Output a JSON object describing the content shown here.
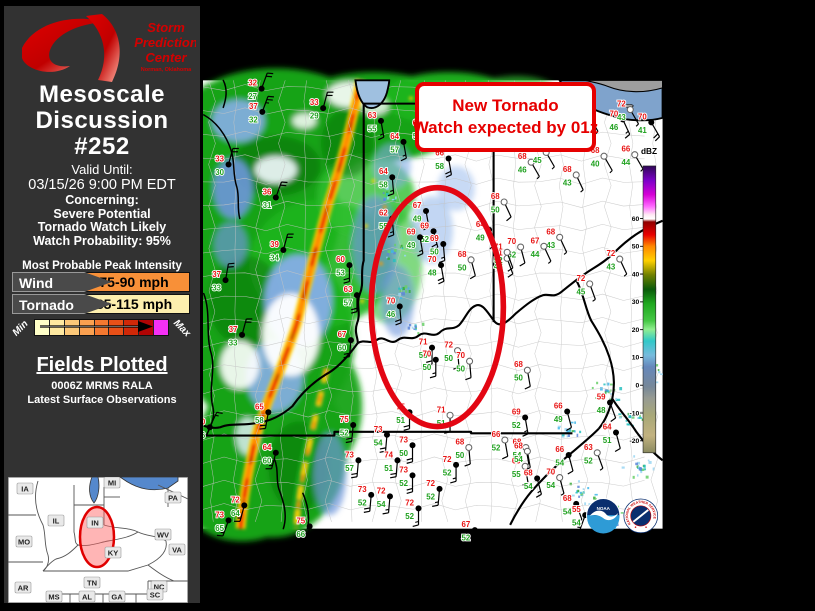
{
  "sidebar": {
    "logo": {
      "org_lines": [
        "Storm",
        "Prediction",
        "Center"
      ],
      "location": "Norman, Oklahoma"
    },
    "title_lines": [
      "Mesoscale",
      "Discussion",
      "#252"
    ],
    "valid_label": "Valid Until:",
    "valid_time": "03/15/26 9:00 PM EDT",
    "concerning_label": "Concerning:",
    "concerning_lines": [
      "Severe Potential",
      "Tornado Watch Likely",
      "Watch Probability: 95%"
    ],
    "intensity": {
      "header": "Most Probable Peak Intensity",
      "rows": [
        {
          "label": "Wind",
          "value": "75-90 mph",
          "color": "#F89038"
        },
        {
          "label": "Tornado",
          "value": "85-115 mph",
          "color": "#FDEFAE"
        }
      ],
      "scale": {
        "min_label": "Min",
        "max_label": "Max",
        "colors": [
          "#FFFFC8",
          "#FEE8A0",
          "#FCC878",
          "#FAA050",
          "#F47830",
          "#E85018",
          "#D02808",
          "#B00404",
          "#F530F5"
        ],
        "arrow_tip_fraction": 0.85
      }
    },
    "fields": {
      "header": "Fields Plotted",
      "lines": [
        "0006Z MRMS RALA",
        "Latest Surface Observations"
      ]
    }
  },
  "map": {
    "annotation": {
      "line1": "New Tornado",
      "line2": "Watch expected by 01z",
      "color": "#E60000"
    },
    "colorbar": {
      "label": "dBZ",
      "ticks": [
        60,
        50,
        40,
        30,
        20,
        10,
        0,
        -10,
        -20
      ]
    },
    "temp_color": "#E81414",
    "dew_color": "#1FA11F",
    "ellipse_color": "#E30613",
    "stations": [
      [
        281,
        17,
        32,
        27,
        0,
        20,
        20
      ],
      [
        363,
        43,
        33,
        29,
        0,
        15,
        20
      ],
      [
        282,
        48,
        37,
        32,
        0,
        20,
        25
      ],
      [
        237,
        118,
        33,
        30,
        0,
        15,
        20
      ],
      [
        300,
        162,
        36,
        31,
        0,
        20,
        20
      ],
      [
        310,
        232,
        39,
        34,
        0,
        15,
        20
      ],
      [
        233,
        272,
        37,
        33,
        0,
        10,
        20
      ],
      [
        255,
        345,
        37,
        33,
        0,
        15,
        20
      ],
      [
        212,
        468,
        50,
        46,
        0,
        25,
        15
      ],
      [
        237,
        592,
        73,
        65,
        0,
        200,
        15
      ],
      [
        258,
        572,
        72,
        64,
        0,
        195,
        15
      ],
      [
        290,
        448,
        65,
        58,
        0,
        190,
        20
      ],
      [
        300,
        502,
        64,
        60,
        0,
        195,
        15
      ],
      [
        345,
        600,
        75,
        66,
        0,
        190,
        20
      ],
      [
        398,
        252,
        60,
        53,
        0,
        180,
        20
      ],
      [
        408,
        292,
        63,
        57,
        0,
        180,
        20
      ],
      [
        400,
        352,
        67,
        60,
        0,
        185,
        20
      ],
      [
        440,
        60,
        63,
        55,
        0,
        170,
        15
      ],
      [
        470,
        88,
        64,
        57,
        0,
        170,
        15
      ],
      [
        500,
        70,
        66,
        57,
        0,
        165,
        20
      ],
      [
        530,
        110,
        66,
        58,
        0,
        170,
        20
      ],
      [
        455,
        135,
        64,
        58,
        0,
        175,
        15
      ],
      [
        455,
        190,
        62,
        55,
        0,
        175,
        15
      ],
      [
        525,
        22,
        65,
        50,
        0,
        160,
        15
      ],
      [
        578,
        42,
        68,
        48,
        0,
        160,
        15
      ],
      [
        632,
        48,
        68,
        46,
        0,
        160,
        15
      ],
      [
        672,
        48,
        69,
        48,
        1,
        155,
        10
      ],
      [
        718,
        55,
        70,
        46,
        1,
        150,
        10
      ],
      [
        762,
        58,
        70,
        46,
        0,
        155,
        15
      ],
      [
        800,
        62,
        70,
        41,
        0,
        150,
        20
      ],
      [
        500,
        180,
        67,
        49,
        0,
        170,
        20
      ],
      [
        510,
        207,
        69,
        52,
        0,
        165,
        20
      ],
      [
        492,
        215,
        69,
        49,
        0,
        170,
        15
      ],
      [
        523,
        224,
        69,
        50,
        0,
        175,
        15
      ],
      [
        520,
        252,
        70,
        48,
        0,
        170,
        20
      ],
      [
        560,
        245,
        68,
        50,
        1,
        165,
        12
      ],
      [
        604,
        168,
        68,
        50,
        1,
        155,
        10
      ],
      [
        608,
        243,
        71,
        48,
        1,
        160,
        10
      ],
      [
        626,
        228,
        70,
        52,
        1,
        165,
        10
      ],
      [
        584,
        205,
        64,
        49,
        0,
        160,
        15
      ],
      [
        545,
        62,
        66,
        57,
        0,
        165,
        15
      ],
      [
        640,
        115,
        68,
        46,
        1,
        150,
        8
      ],
      [
        660,
        102,
        69,
        45,
        1,
        150,
        8
      ],
      [
        700,
        132,
        68,
        43,
        1,
        155,
        8
      ],
      [
        737,
        107,
        68,
        40,
        1,
        150,
        8
      ],
      [
        778,
        105,
        66,
        44,
        1,
        150,
        8
      ],
      [
        772,
        45,
        72,
        43,
        1,
        150,
        8
      ],
      [
        678,
        215,
        68,
        43,
        1,
        155,
        8
      ],
      [
        608,
        235,
        71,
        52,
        1,
        160,
        10
      ],
      [
        657,
        227,
        67,
        44,
        1,
        155,
        8
      ],
      [
        718,
        277,
        72,
        45,
        1,
        160,
        8
      ],
      [
        758,
        244,
        72,
        43,
        1,
        155,
        8
      ],
      [
        465,
        307,
        70,
        46,
        0,
        175,
        20
      ],
      [
        508,
        362,
        71,
        53,
        0,
        180,
        20
      ],
      [
        542,
        366,
        72,
        50,
        1,
        175,
        10
      ],
      [
        513,
        378,
        70,
        50,
        0,
        180,
        15
      ],
      [
        558,
        380,
        70,
        50,
        1,
        175,
        10
      ],
      [
        635,
        392,
        68,
        50,
        1,
        170,
        10
      ],
      [
        478,
        448,
        75,
        51,
        0,
        180,
        20
      ],
      [
        532,
        452,
        71,
        51,
        1,
        180,
        10
      ],
      [
        403,
        465,
        75,
        52,
        0,
        185,
        20
      ],
      [
        410,
        512,
        73,
        57,
        0,
        185,
        20
      ],
      [
        448,
        478,
        73,
        54,
        0,
        185,
        20
      ],
      [
        482,
        492,
        73,
        50,
        0,
        180,
        20
      ],
      [
        462,
        512,
        74,
        51,
        0,
        185,
        20
      ],
      [
        482,
        532,
        73,
        52,
        0,
        180,
        20
      ],
      [
        540,
        518,
        72,
        52,
        0,
        180,
        15
      ],
      [
        518,
        550,
        72,
        52,
        0,
        185,
        15
      ],
      [
        557,
        495,
        68,
        50,
        1,
        175,
        10
      ],
      [
        605,
        485,
        66,
        52,
        1,
        170,
        10
      ],
      [
        633,
        495,
        68,
        54,
        1,
        170,
        12
      ],
      [
        632,
        520,
        69,
        55,
        1,
        170,
        10
      ],
      [
        648,
        536,
        68,
        54,
        0,
        165,
        15
      ],
      [
        427,
        558,
        73,
        52,
        0,
        185,
        20
      ],
      [
        452,
        560,
        72,
        54,
        0,
        185,
        18
      ],
      [
        490,
        576,
        72,
        52,
        0,
        180,
        18
      ],
      [
        632,
        455,
        69,
        52,
        0,
        170,
        15
      ],
      [
        688,
        447,
        66,
        49,
        0,
        165,
        12
      ],
      [
        690,
        505,
        66,
        54,
        0,
        165,
        12
      ],
      [
        728,
        502,
        63,
        52,
        1,
        160,
        5
      ],
      [
        753,
        475,
        64,
        51,
        0,
        165,
        12
      ],
      [
        678,
        535,
        70,
        54,
        1,
        165,
        5
      ],
      [
        745,
        435,
        59,
        48,
        0,
        160,
        12
      ],
      [
        635,
        500,
        68,
        54,
        1,
        170,
        8
      ],
      [
        565,
        605,
        67,
        52,
        0,
        180,
        15
      ],
      [
        700,
        570,
        68,
        54,
        0,
        160,
        12
      ],
      [
        712,
        585,
        55,
        54,
        0,
        200,
        15
      ]
    ]
  },
  "inset": {
    "states": [
      "IA",
      "MI",
      "PA",
      "IL",
      "IN",
      "MO",
      "WV",
      "VA",
      "KY",
      "AR",
      "TN",
      "NC",
      "MS",
      "AL",
      "GA",
      "SC"
    ]
  },
  "logos": {
    "noaa": "NOAA",
    "nws": "NATIONAL WEATHER SERVICE"
  }
}
